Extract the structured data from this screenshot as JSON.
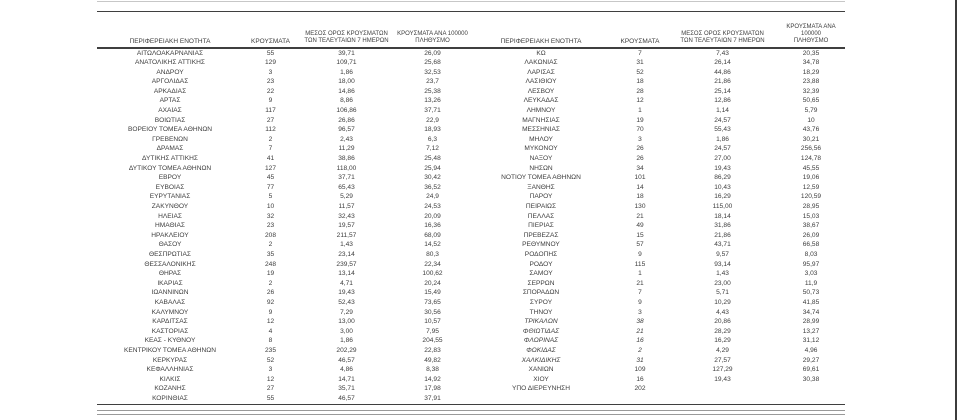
{
  "page": {
    "background": "#ffffff",
    "text_color": "#3d3d3d",
    "rule_color": "#3f3f3f",
    "light_rule_color": "#c7c7c7",
    "window_border_color": "#3c3c3c"
  },
  "columns": {
    "region": "ΠΕΡΙΦΕΡΕΙΑΚΗ ΕΝΟΤΗΤΑ",
    "cases": "ΚΡΟΥΣΜΑΤΑ",
    "avg_line1": "ΜΕΣΟΣ ΟΡΟΣ ΚΡΟΥΣΜΑΤΩΝ",
    "avg_line2": "ΤΩΝ ΤΕΛΕΥΤΑΙΩΝ 7 ΗΜΕΡΩΝ",
    "per100k_line1": "ΚΡΟΥΣΜΑΤΑ ΑΝΑ 100000",
    "per100k_line2": "ΠΛΗΘΥΣΜΟ"
  },
  "left_rows": [
    {
      "name": "ΑΙΤΩΛΟΑΚΑΡΝΑΝΙΑΣ",
      "cases": "55",
      "avg": "39,71",
      "rate": "26,09"
    },
    {
      "name": "ΑΝΑΤΟΛΙΚΗΣ ΑΤΤΙΚΗΣ",
      "cases": "129",
      "avg": "109,71",
      "rate": "25,68"
    },
    {
      "name": "ΑΝΔΡΟΥ",
      "cases": "3",
      "avg": "1,86",
      "rate": "32,53"
    },
    {
      "name": "ΑΡΓΟΛΙΔΑΣ",
      "cases": "23",
      "avg": "18,00",
      "rate": "23,7"
    },
    {
      "name": "ΑΡΚΑΔΙΑΣ",
      "cases": "22",
      "avg": "14,86",
      "rate": "25,38"
    },
    {
      "name": "ΑΡΤΑΣ",
      "cases": "9",
      "avg": "8,86",
      "rate": "13,26"
    },
    {
      "name": "ΑΧΑΪΑΣ",
      "cases": "117",
      "avg": "106,86",
      "rate": "37,71"
    },
    {
      "name": "ΒΟΙΩΤΙΑΣ",
      "cases": "27",
      "avg": "26,86",
      "rate": "22,9"
    },
    {
      "name": "ΒΟΡΕΙΟΥ ΤΟΜΕΑ ΑΘΗΝΩΝ",
      "cases": "112",
      "avg": "96,57",
      "rate": "18,93"
    },
    {
      "name": "ΓΡΕΒΕΝΩΝ",
      "cases": "2",
      "avg": "2,43",
      "rate": "6,3"
    },
    {
      "name": "ΔΡΑΜΑΣ",
      "cases": "7",
      "avg": "11,29",
      "rate": "7,12"
    },
    {
      "name": "ΔΥΤΙΚΗΣ ΑΤΤΙΚΗΣ",
      "cases": "41",
      "avg": "38,86",
      "rate": "25,48"
    },
    {
      "name": "ΔΥΤΙΚΟΥ ΤΟΜΕΑ ΑΘΗΝΩΝ",
      "cases": "127",
      "avg": "118,00",
      "rate": "25,94"
    },
    {
      "name": "ΕΒΡΟΥ",
      "cases": "45",
      "avg": "37,71",
      "rate": "30,42"
    },
    {
      "name": "ΕΥΒΟΙΑΣ",
      "cases": "77",
      "avg": "65,43",
      "rate": "36,52"
    },
    {
      "name": "ΕΥΡΥΤΑΝΙΑΣ",
      "cases": "5",
      "avg": "5,29",
      "rate": "24,9"
    },
    {
      "name": "ΖΑΚΥΝΘΟΥ",
      "cases": "10",
      "avg": "11,57",
      "rate": "24,53"
    },
    {
      "name": "ΗΛΕΙΑΣ",
      "cases": "32",
      "avg": "32,43",
      "rate": "20,09"
    },
    {
      "name": "ΗΜΑΘΙΑΣ",
      "cases": "23",
      "avg": "19,57",
      "rate": "16,36"
    },
    {
      "name": "ΗΡΑΚΛΕΙΟΥ",
      "cases": "208",
      "avg": "211,57",
      "rate": "68,09"
    },
    {
      "name": "ΘΑΣΟΥ",
      "cases": "2",
      "avg": "1,43",
      "rate": "14,52"
    },
    {
      "name": "ΘΕΣΠΡΩΤΙΑΣ",
      "cases": "35",
      "avg": "23,14",
      "rate": "80,3"
    },
    {
      "name": "ΘΕΣΣΑΛΟΝΙΚΗΣ",
      "cases": "248",
      "avg": "239,57",
      "rate": "22,34"
    },
    {
      "name": "ΘΗΡΑΣ",
      "cases": "19",
      "avg": "13,14",
      "rate": "100,62"
    },
    {
      "name": "ΙΚΑΡΙΑΣ",
      "cases": "2",
      "avg": "4,71",
      "rate": "20,24"
    },
    {
      "name": "ΙΩΑΝΝΙΝΩΝ",
      "cases": "26",
      "avg": "19,43",
      "rate": "15,49"
    },
    {
      "name": "ΚΑΒΑΛΑΣ",
      "cases": "92",
      "avg": "52,43",
      "rate": "73,65"
    },
    {
      "name": "ΚΑΛΥΜΝΟΥ",
      "cases": "9",
      "avg": "7,29",
      "rate": "30,56"
    },
    {
      "name": "ΚΑΡΔΙΤΣΑΣ",
      "cases": "12",
      "avg": "13,00",
      "rate": "10,57"
    },
    {
      "name": "ΚΑΣΤΟΡΙΑΣ",
      "cases": "4",
      "avg": "3,00",
      "rate": "7,95"
    },
    {
      "name": "ΚΕΑΣ - ΚΥΘΝΟΥ",
      "cases": "8",
      "avg": "1,86",
      "rate": "204,55"
    },
    {
      "name": "ΚΕΝΤΡΙΚΟΥ ΤΟΜΕΑ ΑΘΗΝΩΝ",
      "cases": "235",
      "avg": "202,29",
      "rate": "22,83"
    },
    {
      "name": "ΚΕΡΚΥΡΑΣ",
      "cases": "52",
      "avg": "46,57",
      "rate": "49,82"
    },
    {
      "name": "ΚΕΦΑΛΛΗΝΙΑΣ",
      "cases": "3",
      "avg": "4,86",
      "rate": "8,38"
    },
    {
      "name": "ΚΙΛΚΙΣ",
      "cases": "12",
      "avg": "14,71",
      "rate": "14,92"
    },
    {
      "name": "ΚΟΖΑΝΗΣ",
      "cases": "27",
      "avg": "35,71",
      "rate": "17,98"
    },
    {
      "name": "ΚΟΡΙΝΘΙΑΣ",
      "cases": "55",
      "avg": "46,57",
      "rate": "37,91"
    }
  ],
  "right_rows": [
    {
      "name": "ΚΩ",
      "cases": "7",
      "avg": "7,43",
      "rate": "20,35"
    },
    {
      "name": "ΛΑΚΩΝΙΑΣ",
      "cases": "31",
      "avg": "26,14",
      "rate": "34,78"
    },
    {
      "name": "ΛΑΡΙΣΑΣ",
      "cases": "52",
      "avg": "44,86",
      "rate": "18,29"
    },
    {
      "name": "ΛΑΣΙΘΙΟΥ",
      "cases": "18",
      "avg": "21,86",
      "rate": "23,88"
    },
    {
      "name": "ΛΕΣΒΟΥ",
      "cases": "28",
      "avg": "25,14",
      "rate": "32,39"
    },
    {
      "name": "ΛΕΥΚΑΔΑΣ",
      "cases": "12",
      "avg": "12,86",
      "rate": "50,65"
    },
    {
      "name": "ΛΗΜΝΟΥ",
      "cases": "1",
      "avg": "1,14",
      "rate": "5,79"
    },
    {
      "name": "ΜΑΓΝΗΣΙΑΣ",
      "cases": "19",
      "avg": "24,57",
      "rate": "10"
    },
    {
      "name": "ΜΕΣΣΗΝΙΑΣ",
      "cases": "70",
      "avg": "55,43",
      "rate": "43,76"
    },
    {
      "name": "ΜΗΛΟΥ",
      "cases": "3",
      "avg": "1,86",
      "rate": "30,21"
    },
    {
      "name": "ΜΥΚΟΝΟΥ",
      "cases": "26",
      "avg": "24,57",
      "rate": "256,56"
    },
    {
      "name": "ΝΑΞΟΥ",
      "cases": "26",
      "avg": "27,00",
      "rate": "124,78"
    },
    {
      "name": "ΝΗΣΩΝ",
      "cases": "34",
      "avg": "19,43",
      "rate": "45,55"
    },
    {
      "name": "ΝΟΤΙΟΥ ΤΟΜΕΑ ΑΘΗΝΩΝ",
      "cases": "101",
      "avg": "86,29",
      "rate": "19,06"
    },
    {
      "name": "ΞΑΝΘΗΣ",
      "cases": "14",
      "avg": "10,43",
      "rate": "12,59"
    },
    {
      "name": "ΠΑΡΟΥ",
      "cases": "18",
      "avg": "16,29",
      "rate": "120,59"
    },
    {
      "name": "ΠΕΙΡΑΙΩΣ",
      "cases": "130",
      "avg": "115,00",
      "rate": "28,95"
    },
    {
      "name": "ΠΕΛΛΑΣ",
      "cases": "21",
      "avg": "18,14",
      "rate": "15,03"
    },
    {
      "name": "ΠΙΕΡΙΑΣ",
      "cases": "49",
      "avg": "31,86",
      "rate": "38,67"
    },
    {
      "name": "ΠΡΕΒΕΖΑΣ",
      "cases": "15",
      "avg": "21,86",
      "rate": "26,09"
    },
    {
      "name": "ΡΕΘΥΜΝΟΥ",
      "cases": "57",
      "avg": "43,71",
      "rate": "66,58"
    },
    {
      "name": "ΡΟΔΟΠΗΣ",
      "cases": "9",
      "avg": "9,57",
      "rate": "8,03"
    },
    {
      "name": "ΡΟΔΟΥ",
      "cases": "115",
      "avg": "93,14",
      "rate": "95,97"
    },
    {
      "name": "ΣΑΜΟΥ",
      "cases": "1",
      "avg": "1,43",
      "rate": "3,03"
    },
    {
      "name": "ΣΕΡΡΩΝ",
      "cases": "21",
      "avg": "23,00",
      "rate": "11,9"
    },
    {
      "name": "ΣΠΟΡΑΔΩΝ",
      "cases": "7",
      "avg": "5,71",
      "rate": "50,73"
    },
    {
      "name": "ΣΥΡΟΥ",
      "cases": "9",
      "avg": "10,29",
      "rate": "41,85"
    },
    {
      "name": "ΤΗΝΟΥ",
      "cases": "3",
      "avg": "4,43",
      "rate": "34,74"
    },
    {
      "name": "ΤΡΙΚΑΛΩΝ",
      "cases": "38",
      "avg": "20,86",
      "rate": "28,99",
      "italic": true
    },
    {
      "name": "ΦΘΙΩΤΙΔΑΣ",
      "cases": "21",
      "avg": "28,29",
      "rate": "13,27",
      "italic": true
    },
    {
      "name": "ΦΛΩΡΙΝΑΣ",
      "cases": "16",
      "avg": "16,29",
      "rate": "31,12",
      "italic": true
    },
    {
      "name": "ΦΩΚΙΔΑΣ",
      "cases": "2",
      "avg": "4,29",
      "rate": "4,96",
      "italic": true
    },
    {
      "name": "ΧΑΛΚΙΔΙΚΗΣ",
      "cases": "31",
      "avg": "27,57",
      "rate": "29,27",
      "italic": true
    },
    {
      "name": "ΧΑΝΙΩΝ",
      "cases": "109",
      "avg": "127,29",
      "rate": "69,61"
    },
    {
      "name": "ΧΙΟΥ",
      "cases": "16",
      "avg": "19,43",
      "rate": "30,38"
    },
    {
      "name": "ΥΠΟ ΔΙΕΡΕΥΝΗΣΗ",
      "cases": "202",
      "avg": "",
      "rate": ""
    }
  ]
}
